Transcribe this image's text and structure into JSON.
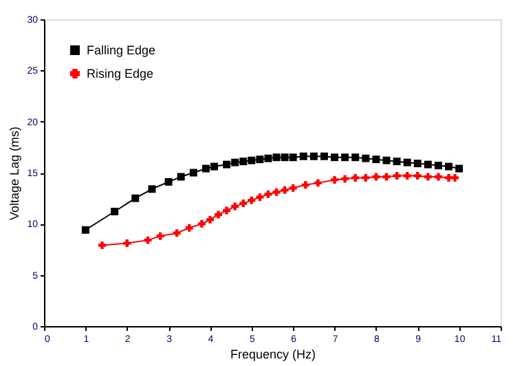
{
  "chart_data": {
    "type": "line",
    "xlabel": "Frequency (Hz)",
    "ylabel": "Voltage Lag (ms)",
    "xlim": [
      0,
      11
    ],
    "xticks": [
      0,
      1,
      2,
      3,
      4,
      5,
      6,
      7,
      8,
      9,
      10,
      11
    ],
    "ylim": [
      0,
      30
    ],
    "yticks": [
      0,
      5,
      10,
      15,
      20,
      25,
      30
    ],
    "grid": false,
    "legend": "top left",
    "series": [
      {
        "name": "Falling Edge",
        "color": "#000000",
        "marker": "square",
        "x": [
          1,
          1.7,
          2.2,
          2.6,
          3,
          3.3,
          3.6,
          3.9,
          4.1,
          4.4,
          4.6,
          4.8,
          5,
          5.2,
          5.4,
          5.6,
          5.8,
          6,
          6.25,
          6.5,
          6.75,
          7,
          7.25,
          7.5,
          7.75,
          8,
          8.25,
          8.5,
          8.75,
          9,
          9.25,
          9.5,
          9.75,
          10
        ],
        "values": [
          9.4,
          11.2,
          12.5,
          13.4,
          14.1,
          14.6,
          15.0,
          15.4,
          15.6,
          15.8,
          16.0,
          16.1,
          16.2,
          16.3,
          16.4,
          16.5,
          16.5,
          16.5,
          16.6,
          16.6,
          16.6,
          16.5,
          16.5,
          16.5,
          16.4,
          16.3,
          16.2,
          16.1,
          16.0,
          15.9,
          15.8,
          15.7,
          15.6,
          15.4
        ]
      },
      {
        "name": "Rising Edge",
        "color": "#ff0000",
        "marker": "cross",
        "x": [
          1.4,
          2,
          2.5,
          2.8,
          3.2,
          3.5,
          3.8,
          4.0,
          4.2,
          4.4,
          4.6,
          4.8,
          5,
          5.2,
          5.4,
          5.6,
          5.8,
          6,
          6.3,
          6.6,
          7,
          7.25,
          7.5,
          7.75,
          8,
          8.25,
          8.5,
          8.75,
          9,
          9.25,
          9.5,
          9.75,
          9.9
        ],
        "values": [
          7.9,
          8.1,
          8.4,
          8.8,
          9.1,
          9.6,
          10.0,
          10.4,
          10.9,
          11.3,
          11.7,
          12.0,
          12.3,
          12.6,
          12.9,
          13.1,
          13.3,
          13.5,
          13.8,
          14.0,
          14.3,
          14.4,
          14.5,
          14.5,
          14.6,
          14.6,
          14.7,
          14.7,
          14.7,
          14.6,
          14.6,
          14.5,
          14.5
        ]
      }
    ]
  }
}
